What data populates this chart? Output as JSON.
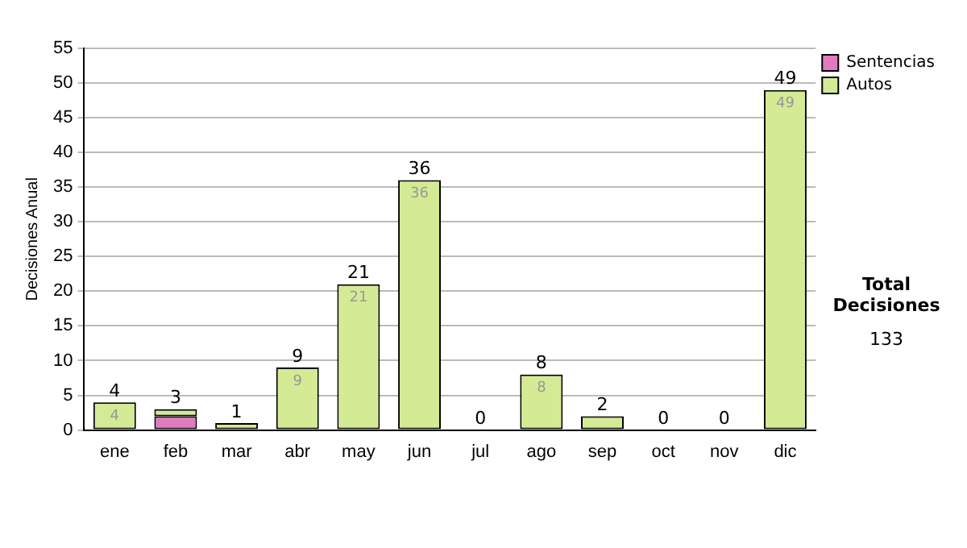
{
  "chart_data": {
    "type": "bar",
    "stacked": true,
    "ylabel": "Decisiones Anual",
    "categories": [
      "ene",
      "feb",
      "mar",
      "abr",
      "may",
      "jun",
      "jul",
      "ago",
      "sep",
      "oct",
      "nov",
      "dic"
    ],
    "series": [
      {
        "name": "Sentencias",
        "color": "#e07bc0",
        "values": [
          0,
          2,
          0,
          0,
          0,
          0,
          0,
          0,
          0,
          0,
          0,
          0
        ]
      },
      {
        "name": "Autos",
        "color": "#d4ea94",
        "values": [
          4,
          1,
          1,
          9,
          21,
          36,
          0,
          8,
          2,
          0,
          0,
          49
        ],
        "value_labels": [
          "4",
          null,
          null,
          "9",
          "21",
          "36",
          null,
          "8",
          null,
          null,
          null,
          "49"
        ]
      }
    ],
    "totals": [
      "4",
      "3",
      "1",
      "9",
      "21",
      "36",
      "0",
      "8",
      "2",
      "0",
      "0",
      "49"
    ],
    "ylim": [
      0,
      55
    ],
    "yticks": [
      0,
      5,
      10,
      15,
      20,
      25,
      30,
      35,
      40,
      45,
      50,
      55
    ],
    "grid": "y",
    "legend": "right",
    "annotations": [
      "Total Decisiones",
      "133"
    ]
  }
}
